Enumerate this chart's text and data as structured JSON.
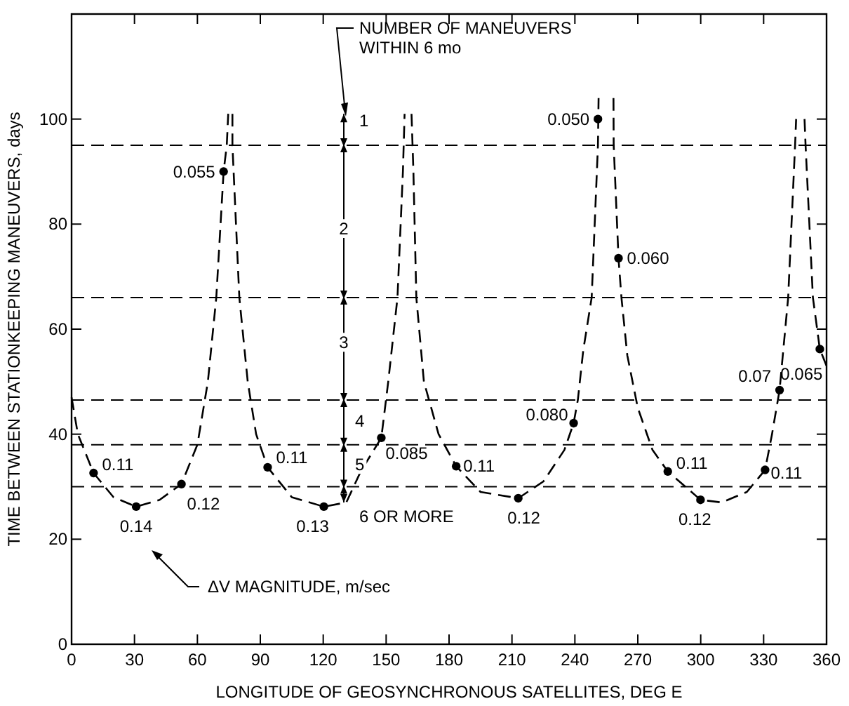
{
  "chart_data": {
    "type": "line",
    "xlabel": "LONGITUDE OF GEOSYNCHRONOUS SATELLITES, DEG E",
    "ylabel": "TIME BETWEEN STATIONKEEPING MANEUVERS, days",
    "xlim": [
      0,
      360
    ],
    "xticks": [
      0,
      30,
      60,
      90,
      120,
      150,
      180,
      210,
      240,
      270,
      300,
      330,
      360
    ],
    "ylim": [
      0,
      120
    ],
    "yticks": [
      0,
      20,
      40,
      60,
      80,
      100
    ],
    "grid": false,
    "series": [
      {
        "color": "#000000",
        "line_style": "dashed",
        "marker": "none",
        "x": [
          0,
          3,
          10.5,
          20,
          30.8,
          42,
          52.4,
          60,
          65,
          69,
          72.5,
          74,
          74.7,
          null,
          76.7,
          76.7,
          80,
          84,
          88,
          93.5,
          105,
          120.3,
          131,
          138,
          147.7,
          151,
          155.4,
          158,
          158.8,
          null,
          162.1,
          163,
          164.4,
          168,
          175,
          183.4,
          195,
          213,
          225,
          235,
          239.4,
          241.4,
          244,
          248,
          251,
          251.3,
          null,
          258.4,
          258.5,
          260.8,
          262.2,
          265,
          270,
          277,
          284.3,
          299.9,
          310,
          322,
          330.7,
          334,
          337.6,
          341.7,
          345,
          345.5,
          null,
          349.5,
          350,
          353.5,
          356.8,
          360
        ],
        "values": [
          47,
          40,
          32.6,
          28,
          26.2,
          27.5,
          30.5,
          38,
          50,
          66,
          90,
          95,
          101,
          null,
          101,
          95,
          66,
          50,
          40,
          33.7,
          28,
          26.2,
          27,
          33,
          39.3,
          50,
          66,
          90,
          101,
          null,
          101,
          90,
          66,
          50,
          40,
          33.9,
          29,
          27.8,
          31,
          37,
          42.1,
          46.5,
          56,
          66,
          95,
          104,
          null,
          104,
          95,
          73.5,
          66,
          55,
          45,
          37,
          32.9,
          27.5,
          27,
          29,
          33.2,
          40,
          48.4,
          66,
          95,
          100,
          null,
          100,
          95,
          66,
          56.2,
          53
        ]
      },
      {
        "type": "scatter",
        "color": "#000000",
        "marker": "circle",
        "x": [
          10.5,
          30.8,
          52.4,
          72.5,
          93.5,
          120.3,
          147.7,
          183.4,
          213,
          239.4,
          251,
          260.8,
          284.3,
          299.9,
          330.7,
          337.6,
          356.8
        ],
        "values": [
          32.6,
          26.2,
          30.5,
          90,
          33.7,
          26.2,
          39.3,
          33.9,
          27.8,
          42.1,
          100,
          73.5,
          32.9,
          27.5,
          33.2,
          48.4,
          56.2
        ]
      }
    ],
    "ref_lines": [
      {
        "axis": "y",
        "value": 95,
        "line_style": "dashed",
        "color": "#000000"
      },
      {
        "axis": "y",
        "value": 66,
        "line_style": "dashed",
        "color": "#000000"
      },
      {
        "axis": "y",
        "value": 46.5,
        "line_style": "dashed",
        "color": "#000000"
      },
      {
        "axis": "y",
        "value": 38,
        "line_style": "dashed",
        "color": "#000000"
      },
      {
        "axis": "y",
        "value": 30,
        "line_style": "dashed",
        "color": "#000000"
      }
    ],
    "annotations": [
      {
        "text": "0.11",
        "x": 10.5,
        "y": 32.6
      },
      {
        "text": "0.14",
        "x": 30.8,
        "y": 26.2
      },
      {
        "text": "0.12",
        "x": 52.4,
        "y": 30.5
      },
      {
        "text": "0.055",
        "x": 72.5,
        "y": 90
      },
      {
        "text": "0.11",
        "x": 93.5,
        "y": 33.7
      },
      {
        "text": "0.13",
        "x": 120.3,
        "y": 26.2
      },
      {
        "text": "0.085",
        "x": 147.7,
        "y": 39.3
      },
      {
        "text": "0.11",
        "x": 183.4,
        "y": 33.9
      },
      {
        "text": "0.12",
        "x": 213,
        "y": 27.8
      },
      {
        "text": "0.080",
        "x": 239.4,
        "y": 42.1
      },
      {
        "text": "0.050",
        "x": 251,
        "y": 100
      },
      {
        "text": "0.060",
        "x": 260.8,
        "y": 73.5
      },
      {
        "text": "0.11",
        "x": 284.3,
        "y": 32.9
      },
      {
        "text": "0.12",
        "x": 299.9,
        "y": 27.5
      },
      {
        "text": "0.11",
        "x": 330.7,
        "y": 33.2
      },
      {
        "text": "0.07",
        "x": 337.6,
        "y": 48.4
      },
      {
        "text": "0.065",
        "x": 356.8,
        "y": 56.2
      },
      "1",
      "2",
      "3",
      "4",
      "5",
      "6 OR MORE",
      "NUMBER OF MANEUVERS\nWITHIN 6 mo",
      "ΔV MAGNITUDE, m/sec"
    ]
  }
}
